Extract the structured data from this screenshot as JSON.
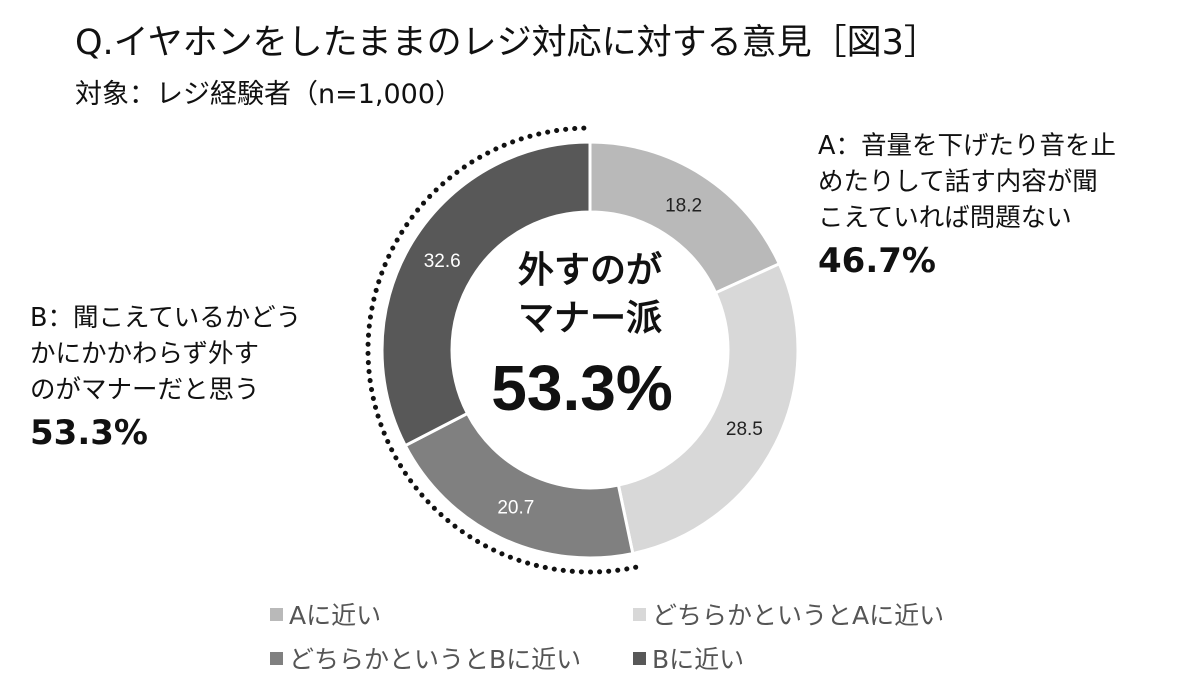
{
  "title": "Q.イヤホンをしたままのレジ対応に対する意見［図3］",
  "subtitle": "対象：レジ経験者（n=1,000）",
  "label_a": {
    "lines": [
      "A：音量を下げたり音を止",
      "めたりして話す内容が聞",
      "こえていれば問題ない"
    ],
    "percent": "46.7%"
  },
  "label_b": {
    "lines": [
      "B：聞こえているかどう",
      "かにかかわらず外す",
      "のがマナーだと思う"
    ],
    "percent": "53.3%"
  },
  "center": {
    "line1": "外すのが",
    "line2": "マナー派",
    "value": "53.3%"
  },
  "chart_data": {
    "type": "pie",
    "donut": true,
    "categories": [
      "Aに近い",
      "どちらかというとAに近い",
      "どちらかというとBに近い",
      "Bに近い"
    ],
    "values": [
      18.2,
      28.5,
      20.7,
      32.6
    ],
    "colors": [
      "#b9b9b9",
      "#d8d8d8",
      "#808080",
      "#585858"
    ],
    "data_labels": [
      "18.2",
      "28.5",
      "20.7",
      "32.6"
    ],
    "label_colors": [
      "#222222",
      "#222222",
      "#ffffff",
      "#ffffff"
    ],
    "legend_position": "bottom"
  },
  "legend": [
    {
      "label": "Aに近い",
      "color": "#b9b9b9"
    },
    {
      "label": "どちらかというとAに近い",
      "color": "#d8d8d8"
    },
    {
      "label": "どちらかというとBに近い",
      "color": "#808080"
    },
    {
      "label": "Bに近い",
      "color": "#585858"
    }
  ]
}
